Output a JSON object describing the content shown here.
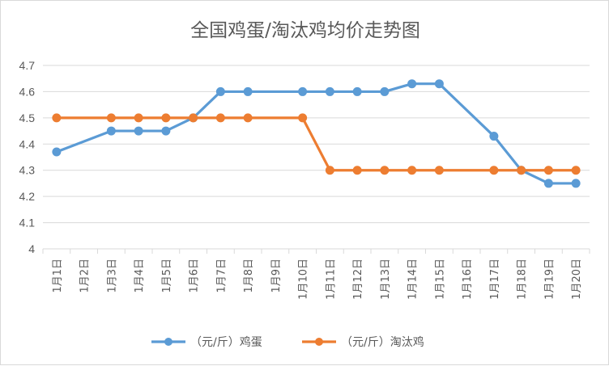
{
  "chart_data": {
    "type": "line",
    "title": "全国鸡蛋/淘汰鸡均价走势图",
    "categories": [
      "1月1日",
      "1月2日",
      "1月3日",
      "1月4日",
      "1月5日",
      "1月6日",
      "1月7日",
      "1月8日",
      "1月9日",
      "1月10日",
      "1月11日",
      "1月12日",
      "1月13日",
      "1月14日",
      "1月15日",
      "1月16日",
      "1月17日",
      "1月18日",
      "1月19日",
      "1月20日"
    ],
    "ylim": [
      4,
      4.7
    ],
    "yticks": [
      "4",
      "4.1",
      "4.2",
      "4.3",
      "4.4",
      "4.5",
      "4.6",
      "4.7"
    ],
    "grid": true,
    "legend_position": "bottom",
    "series": [
      {
        "name": "（元/斤）鸡蛋",
        "color": "#5b9bd5",
        "values": [
          4.37,
          null,
          4.45,
          4.45,
          4.45,
          4.5,
          4.6,
          4.6,
          null,
          4.6,
          4.6,
          4.6,
          4.6,
          4.63,
          4.63,
          null,
          4.43,
          4.3,
          4.25,
          4.25
        ]
      },
      {
        "name": "（元/斤）淘汰鸡",
        "color": "#ed7d31",
        "values": [
          4.5,
          null,
          4.5,
          4.5,
          4.5,
          4.5,
          4.5,
          4.5,
          null,
          4.5,
          4.3,
          4.3,
          4.3,
          4.3,
          4.3,
          null,
          4.3,
          4.3,
          4.3,
          4.3
        ]
      }
    ]
  }
}
